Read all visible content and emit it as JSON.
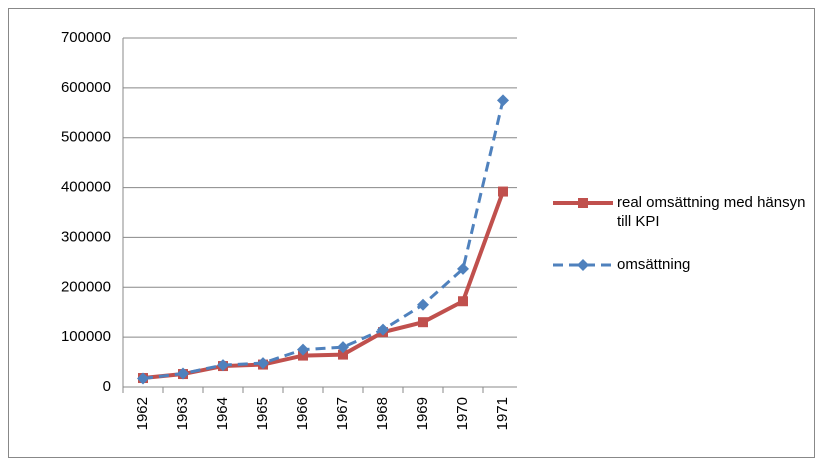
{
  "chart_data": {
    "type": "line",
    "categories": [
      "1962",
      "1963",
      "1964",
      "1965",
      "1966",
      "1967",
      "1968",
      "1969",
      "1970",
      "1971"
    ],
    "series": [
      {
        "name": "real omsättning med hänsyn till KPI",
        "color": "#c0504d",
        "marker": "square",
        "dashed": false,
        "values": [
          18000,
          26000,
          42000,
          45000,
          63000,
          65000,
          110000,
          130000,
          172000,
          392000
        ]
      },
      {
        "name": "omsättning",
        "color": "#4f81bd",
        "marker": "diamond",
        "dashed": true,
        "values": [
          17000,
          27000,
          44000,
          48000,
          75000,
          80000,
          115000,
          165000,
          237000,
          575000
        ]
      }
    ],
    "ylim": [
      0,
      700000
    ],
    "yticks": [
      0,
      100000,
      200000,
      300000,
      400000,
      500000,
      600000,
      700000
    ],
    "grid": true,
    "legend": "right"
  }
}
